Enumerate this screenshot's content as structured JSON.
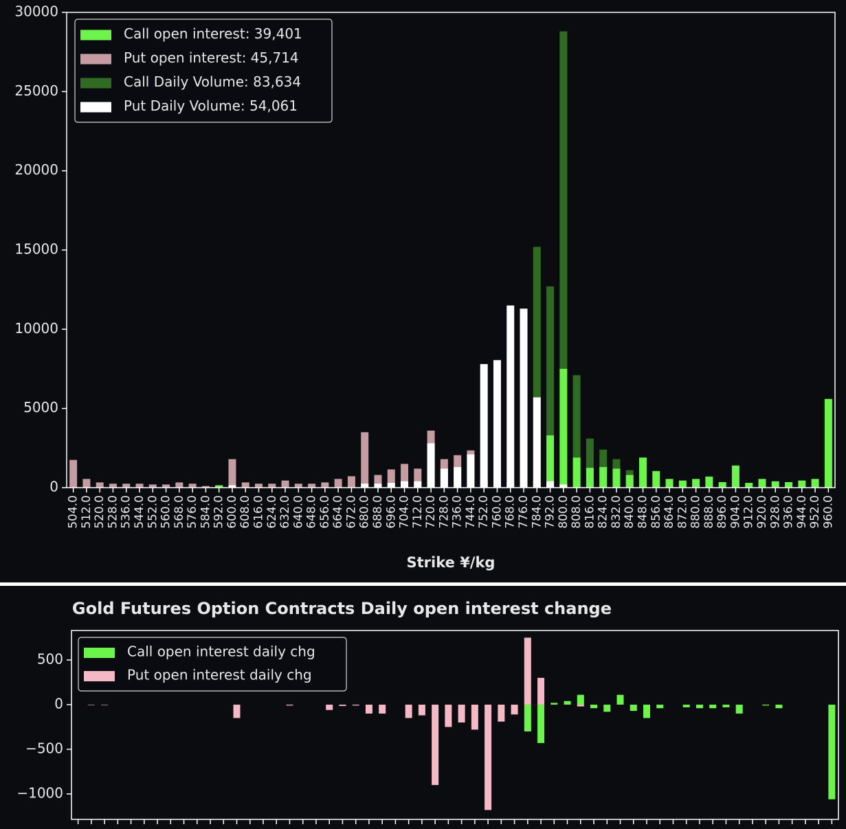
{
  "chart_data": [
    {
      "type": "bar",
      "xlabel": "Strike ¥/kg",
      "categories": [
        "504.0",
        "512.0",
        "520.0",
        "528.0",
        "536.0",
        "544.0",
        "552.0",
        "560.0",
        "568.0",
        "576.0",
        "584.0",
        "592.0",
        "600.0",
        "608.0",
        "616.0",
        "624.0",
        "632.0",
        "640.0",
        "648.0",
        "656.0",
        "664.0",
        "672.0",
        "680.0",
        "688.0",
        "696.0",
        "704.0",
        "712.0",
        "720.0",
        "728.0",
        "736.0",
        "744.0",
        "752.0",
        "760.0",
        "768.0",
        "776.0",
        "784.0",
        "792.0",
        "800.0",
        "808.0",
        "816.0",
        "824.0",
        "832.0",
        "840.0",
        "848.0",
        "856.0",
        "864.0",
        "872.0",
        "880.0",
        "888.0",
        "896.0",
        "904.0",
        "912.0",
        "920.0",
        "928.0",
        "936.0",
        "944.0",
        "952.0",
        "960.0"
      ],
      "series": [
        {
          "name": "Call open interest: 39,401",
          "color": "#6cf44c",
          "values": [
            0,
            0,
            0,
            0,
            0,
            0,
            0,
            0,
            0,
            0,
            0,
            150,
            0,
            0,
            0,
            0,
            0,
            0,
            0,
            0,
            0,
            0,
            0,
            0,
            0,
            0,
            0,
            0,
            0,
            0,
            0,
            0,
            0,
            0,
            0,
            400,
            3300,
            7500,
            1900,
            1250,
            1300,
            1200,
            800,
            1900,
            1050,
            550,
            450,
            550,
            700,
            350,
            1400,
            300,
            550,
            400,
            350,
            450,
            550,
            5600
          ]
        },
        {
          "name": "Put open interest: 45,714",
          "color": "#c49ca2",
          "values": [
            1750,
            550,
            330,
            250,
            250,
            250,
            200,
            200,
            330,
            250,
            100,
            150,
            1800,
            330,
            250,
            250,
            450,
            250,
            250,
            330,
            550,
            720,
            3500,
            800,
            1150,
            1500,
            1200,
            3600,
            1800,
            2050,
            2350,
            500,
            400,
            300,
            200,
            150,
            100,
            300,
            0,
            0,
            0,
            0,
            0,
            0,
            0,
            0,
            0,
            0,
            0,
            0,
            0,
            0,
            0,
            0,
            0,
            0,
            0,
            0
          ]
        },
        {
          "name": "Call Daily Volume: 83,634",
          "color": "#2f6b22",
          "values": [
            0,
            0,
            0,
            0,
            0,
            0,
            0,
            0,
            0,
            0,
            0,
            0,
            0,
            0,
            0,
            0,
            0,
            0,
            0,
            0,
            0,
            0,
            0,
            0,
            0,
            0,
            0,
            0,
            0,
            0,
            0,
            0,
            0,
            0,
            0,
            15200,
            12700,
            28800,
            7100,
            3100,
            2400,
            1800,
            1100,
            0,
            0,
            0,
            0,
            0,
            0,
            0,
            0,
            0,
            0,
            0,
            0,
            0,
            0,
            0
          ]
        },
        {
          "name": "Put Daily Volume: 54,061",
          "color": "#ffffff",
          "values": [
            0,
            0,
            0,
            0,
            0,
            0,
            0,
            0,
            0,
            0,
            0,
            0,
            150,
            0,
            0,
            0,
            0,
            0,
            0,
            0,
            0,
            0,
            250,
            250,
            300,
            400,
            400,
            2800,
            1200,
            1300,
            2100,
            7800,
            8050,
            11500,
            11300,
            5700,
            400,
            200,
            0,
            0,
            0,
            0,
            0,
            0,
            0,
            0,
            0,
            0,
            0,
            0,
            0,
            0,
            0,
            0,
            0,
            0,
            0,
            0
          ]
        }
      ],
      "ylim": [
        0,
        30000
      ],
      "yticks": [
        0,
        5000,
        10000,
        15000,
        20000,
        25000,
        30000
      ],
      "legend": "upper left"
    },
    {
      "type": "bar",
      "title": "Gold  Futures Option Contracts Daily open interest change",
      "categories": [
        null,
        null,
        null,
        null,
        null,
        null,
        null,
        null,
        null,
        null,
        null,
        null,
        null,
        null,
        null,
        null,
        null,
        null,
        null,
        null,
        null,
        null,
        null,
        null,
        null,
        null,
        null,
        null,
        null,
        null,
        null,
        null,
        null,
        null,
        null,
        null,
        null,
        null,
        null,
        null,
        null,
        null,
        null,
        null,
        null,
        null,
        null,
        null,
        null,
        null,
        null,
        null,
        null,
        null,
        null,
        null,
        null,
        null
      ],
      "series": [
        {
          "name": "Call open interest daily chg",
          "color": "#6cf44c",
          "values": [
            0,
            0,
            0,
            0,
            0,
            0,
            0,
            0,
            0,
            0,
            0,
            0,
            0,
            0,
            0,
            0,
            0,
            0,
            0,
            0,
            0,
            0,
            0,
            0,
            0,
            0,
            0,
            0,
            0,
            0,
            0,
            0,
            0,
            0,
            -300,
            -430,
            20,
            40,
            110,
            -40,
            -80,
            110,
            -70,
            -150,
            -40,
            0,
            -30,
            -40,
            -40,
            -30,
            -100,
            0,
            -10,
            -40,
            0,
            0,
            0,
            -1060
          ]
        },
        {
          "name": "Put open interest daily chg",
          "color": "#f5b9c6",
          "values": [
            0,
            -5,
            -5,
            0,
            0,
            0,
            0,
            0,
            0,
            0,
            0,
            0,
            -150,
            0,
            0,
            0,
            -10,
            0,
            0,
            -60,
            -15,
            -10,
            -100,
            -100,
            0,
            -150,
            -120,
            -900,
            -250,
            -200,
            -280,
            -1180,
            -190,
            -110,
            750,
            300,
            0,
            0,
            -20,
            0,
            0,
            0,
            0,
            0,
            0,
            0,
            0,
            0,
            0,
            0,
            0,
            0,
            0,
            0,
            0,
            0,
            0,
            0
          ]
        }
      ],
      "ylim": [
        -1285,
        830
      ],
      "yticks": [
        {
          "value": -1000,
          "label": "−1000"
        },
        {
          "value": -500,
          "label": "−500"
        },
        0,
        500
      ],
      "legend": "upper left"
    }
  ]
}
